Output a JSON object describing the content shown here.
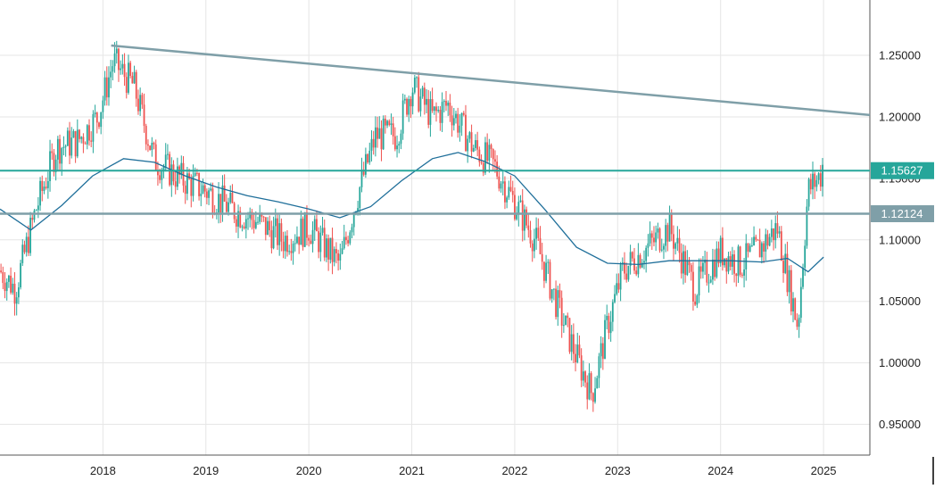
{
  "chart_data": {
    "type": "candlestick",
    "x_ticks": [
      "2018",
      "2019",
      "2020",
      "2021",
      "2022",
      "2023",
      "2024",
      "2025"
    ],
    "y_ticks": [
      "0.95000",
      "1.00000",
      "1.05000",
      "1.10000",
      "1.15000",
      "1.20000",
      "1.25000"
    ],
    "ylim": [
      0.925,
      1.295
    ],
    "xlim": [
      2017.0,
      2025.45
    ],
    "grid": true,
    "horizontal_lines": [
      {
        "value": 1.15627,
        "label": "1.15627",
        "color": "#26a69a"
      },
      {
        "value": 1.12124,
        "label": "1.12124",
        "color": "#7f9fa8"
      }
    ],
    "trendline": {
      "x": [
        2018.08,
        2025.45
      ],
      "y": [
        1.258,
        1.2015
      ],
      "color": "#7f9fa8"
    },
    "moving_average": {
      "color": "#1f6f9a",
      "x": [
        2017.0,
        2017.3,
        2017.6,
        2017.9,
        2018.2,
        2018.5,
        2018.8,
        2019.1,
        2019.4,
        2019.7,
        2020.0,
        2020.3,
        2020.6,
        2020.9,
        2021.2,
        2021.45,
        2021.7,
        2022.0,
        2022.3,
        2022.6,
        2022.9,
        2023.2,
        2023.5,
        2023.8,
        2024.1,
        2024.4,
        2024.65,
        2024.85,
        2025.0
      ],
      "y": [
        1.125,
        1.108,
        1.128,
        1.152,
        1.166,
        1.163,
        1.152,
        1.143,
        1.136,
        1.131,
        1.125,
        1.118,
        1.127,
        1.148,
        1.166,
        1.171,
        1.164,
        1.152,
        1.124,
        1.094,
        1.081,
        1.08,
        1.083,
        1.083,
        1.083,
        1.082,
        1.085,
        1.074,
        1.086
      ]
    },
    "price_path": {
      "x": [
        2017.0,
        2017.15,
        2017.35,
        2017.55,
        2017.75,
        2017.95,
        2018.1,
        2018.3,
        2018.5,
        2018.75,
        2019.0,
        2019.25,
        2019.5,
        2019.75,
        2020.0,
        2020.2,
        2020.3,
        2020.45,
        2020.65,
        2020.85,
        2021.0,
        2021.2,
        2021.35,
        2021.6,
        2021.8,
        2022.0,
        2022.2,
        2022.4,
        2022.6,
        2022.75,
        2022.9,
        2023.05,
        2023.3,
        2023.5,
        2023.75,
        2024.0,
        2024.2,
        2024.4,
        2024.55,
        2024.75,
        2024.85,
        2025.0
      ],
      "y": [
        1.075,
        1.06,
        1.125,
        1.175,
        1.18,
        1.2,
        1.245,
        1.225,
        1.165,
        1.15,
        1.14,
        1.125,
        1.115,
        1.1,
        1.11,
        1.09,
        1.08,
        1.13,
        1.185,
        1.185,
        1.225,
        1.2,
        1.21,
        1.175,
        1.16,
        1.13,
        1.1,
        1.05,
        1.005,
        0.975,
        1.03,
        1.075,
        1.095,
        1.11,
        1.06,
        1.09,
        1.08,
        1.095,
        1.11,
        1.03,
        1.14,
        1.156
      ]
    },
    "candle_color_up": "#26a69a",
    "candle_color_down": "#ef5350"
  }
}
